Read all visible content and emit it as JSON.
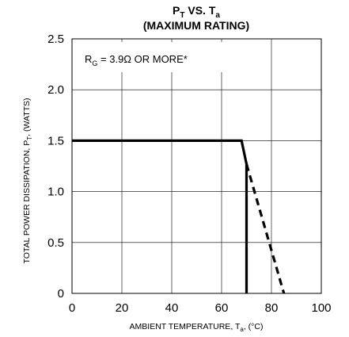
{
  "chart_data": {
    "type": "line",
    "title_main": "P",
    "title_main_sub": "T",
    "title_vs": " VS. T",
    "title_vs_sub": "a",
    "subtitle": "(MAXIMUM RATING)",
    "xlabel_prefix": "AMBIENT TEMPERATURE, T",
    "xlabel_sub": "a",
    "xlabel_suffix": ", (°C)",
    "ylabel_prefix": "TOTAL POWER DISSIPATION, P",
    "ylabel_sub": "T",
    "ylabel_suffix": ", (WATTS)",
    "xlim": [
      0,
      100
    ],
    "ylim": [
      0,
      2.5
    ],
    "x_ticks": [
      0,
      20,
      40,
      60,
      80,
      100
    ],
    "y_ticks": [
      0,
      0.5,
      1.0,
      1.5,
      2.0,
      2.5
    ],
    "x_tick_labels": [
      "0",
      "20",
      "40",
      "60",
      "80",
      "100"
    ],
    "y_tick_labels": [
      "0",
      "0.5",
      "1.0",
      "1.5",
      "2.0",
      "2.5"
    ],
    "grid": true,
    "annotation": {
      "prefix": "R",
      "sub": "G",
      "suffix": " = 3.9Ω OR MORE*"
    },
    "series": [
      {
        "style": "solid",
        "x": [
          0,
          68,
          70,
          70
        ],
        "y": [
          1.5,
          1.5,
          1.27,
          0
        ]
      },
      {
        "style": "dashed",
        "x": [
          70,
          85
        ],
        "y": [
          1.27,
          0
        ]
      }
    ]
  }
}
